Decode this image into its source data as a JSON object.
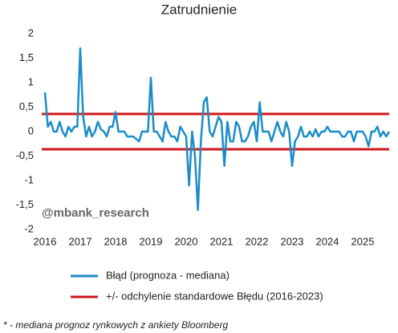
{
  "chart_data": {
    "type": "line",
    "title": "Zatrudnienie",
    "watermark": "@mbank_research",
    "footnote": "* - mediana prognoz rynkowych z ankiety Bloomberg",
    "x": [
      2016,
      2016.083,
      2016.167,
      2016.25,
      2016.333,
      2016.417,
      2016.5,
      2016.583,
      2016.667,
      2016.75,
      2016.833,
      2016.917,
      2017,
      2017.083,
      2017.167,
      2017.25,
      2017.333,
      2017.417,
      2017.5,
      2017.583,
      2017.667,
      2017.75,
      2017.833,
      2017.917,
      2018,
      2018.083,
      2018.167,
      2018.25,
      2018.333,
      2018.417,
      2018.5,
      2018.583,
      2018.667,
      2018.75,
      2018.833,
      2018.917,
      2019,
      2019.083,
      2019.167,
      2019.25,
      2019.333,
      2019.417,
      2019.5,
      2019.583,
      2019.667,
      2019.75,
      2019.833,
      2019.917,
      2020,
      2020.083,
      2020.167,
      2020.25,
      2020.333,
      2020.417,
      2020.5,
      2020.583,
      2020.667,
      2020.75,
      2020.833,
      2020.917,
      2021,
      2021.083,
      2021.167,
      2021.25,
      2021.333,
      2021.417,
      2021.5,
      2021.583,
      2021.667,
      2021.75,
      2021.833,
      2021.917,
      2022,
      2022.083,
      2022.167,
      2022.25,
      2022.333,
      2022.417,
      2022.5,
      2022.583,
      2022.667,
      2022.75,
      2022.833,
      2022.917,
      2023,
      2023.083,
      2023.167,
      2023.25,
      2023.333,
      2023.417,
      2023.5,
      2023.583,
      2023.667,
      2023.75,
      2023.833,
      2023.917,
      2024,
      2024.083,
      2024.167,
      2024.25,
      2024.333,
      2024.417,
      2024.5,
      2024.583,
      2024.667,
      2024.75,
      2024.833,
      2024.917,
      2025,
      2025.083,
      2025.167,
      2025.25,
      2025.333,
      2025.417,
      2025.5,
      2025.583,
      2025.667,
      2025.75
    ],
    "series": [
      {
        "name": "Błąd (prognoza - mediana)",
        "color": "#1a8cc8",
        "values": [
          0.8,
          0.1,
          0.2,
          0,
          0,
          0.2,
          0,
          -0.1,
          0.1,
          0,
          0.1,
          0.1,
          1.7,
          0.3,
          -0.1,
          0.1,
          -0.1,
          0,
          0.2,
          0.05,
          0,
          -0.1,
          0.1,
          0.1,
          0.4,
          0,
          0,
          0,
          -0.1,
          -0.1,
          -0.1,
          -0.15,
          -0.2,
          0,
          0,
          0,
          1.1,
          0,
          0,
          -0.1,
          -0.2,
          0.2,
          0,
          -0.1,
          -0.1,
          -0.2,
          0.1,
          0,
          -0.1,
          -1.1,
          0,
          -0.5,
          -1.6,
          -0.2,
          0.6,
          0.7,
          0,
          -0.1,
          0.1,
          0.3,
          0.2,
          -0.7,
          0.2,
          -0.2,
          -0.2,
          0.2,
          0.1,
          -0.2,
          -0.2,
          -0.1,
          0.1,
          0.2,
          -0.2,
          0.6,
          0,
          0,
          0,
          -0.2,
          0,
          0.2,
          0,
          -0.1,
          0.2,
          0,
          -0.7,
          -0.2,
          -0.1,
          0.1,
          -0.1,
          -0.1,
          0,
          -0.1,
          0.05,
          -0.1,
          0,
          0,
          0.1,
          0,
          0,
          0,
          0,
          -0.1,
          -0.1,
          0,
          0,
          -0.2,
          0,
          0,
          0,
          -0.1,
          -0.3,
          0,
          0,
          0.1,
          -0.1,
          0,
          -0.1,
          0
        ]
      }
    ],
    "std_band": {
      "name": "+/- odchylenie standardowe Błędu (2016-2023)",
      "color": "#d0161c",
      "values": [
        0.36,
        -0.36
      ]
    },
    "xlim": [
      2016,
      2025.75
    ],
    "xticks": [
      2016,
      2017,
      2018,
      2019,
      2020,
      2021,
      2022,
      2023,
      2024,
      2025
    ],
    "ylim": [
      -2,
      2
    ],
    "yticks": [
      -2,
      {
        "value": -1.5,
        "label": "-1,5"
      },
      -1,
      {
        "value": -0.5,
        "label": "-0,5"
      },
      0,
      {
        "value": 0.5,
        "label": "0,5"
      },
      1,
      {
        "value": 1.5,
        "label": "1,5"
      },
      2
    ]
  }
}
